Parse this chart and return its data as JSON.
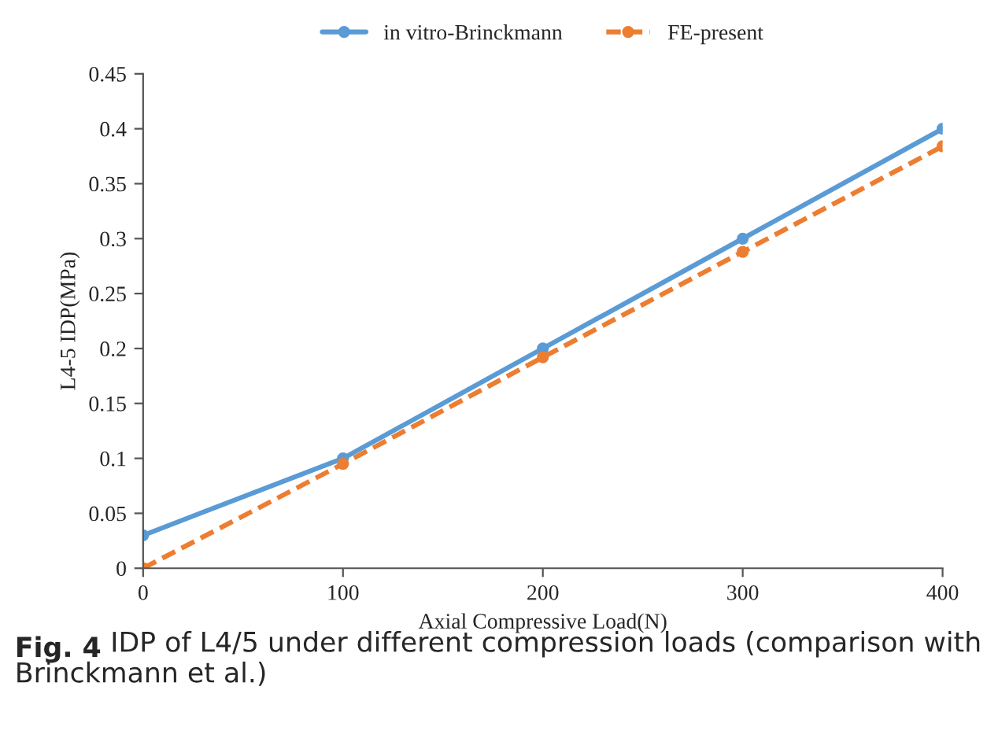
{
  "chart_data": {
    "type": "line",
    "xlabel": "Axial Compressive Load(N)",
    "ylabel": "L4-5 IDP(MPa)",
    "x": [
      0,
      100,
      200,
      300,
      400
    ],
    "series": [
      {
        "name": "in vitro-Brinckmann",
        "color": "#5b9bd5",
        "values": [
          0.03,
          0.1,
          0.2,
          0.3,
          0.4
        ],
        "line_style": "solid"
      },
      {
        "name": "FE-present",
        "color": "#ed7d31",
        "values": [
          0,
          0.095,
          0.192,
          0.288,
          0.384
        ],
        "line_style": "dashed"
      }
    ],
    "xlim": [
      0,
      400
    ],
    "xticks": [
      0,
      100,
      200,
      300,
      400
    ],
    "ylim": [
      0,
      0.45
    ],
    "yticks": [
      0,
      0.05,
      0.1,
      0.15,
      0.2,
      0.25,
      0.3,
      0.35,
      0.4,
      0.45
    ],
    "grid": false,
    "legend": "top",
    "marker": "circle",
    "annotations": [
      "Fig. 4",
      "IDP of L4/5 under different compression loads (comparison with Brinckmann et al.)"
    ]
  }
}
